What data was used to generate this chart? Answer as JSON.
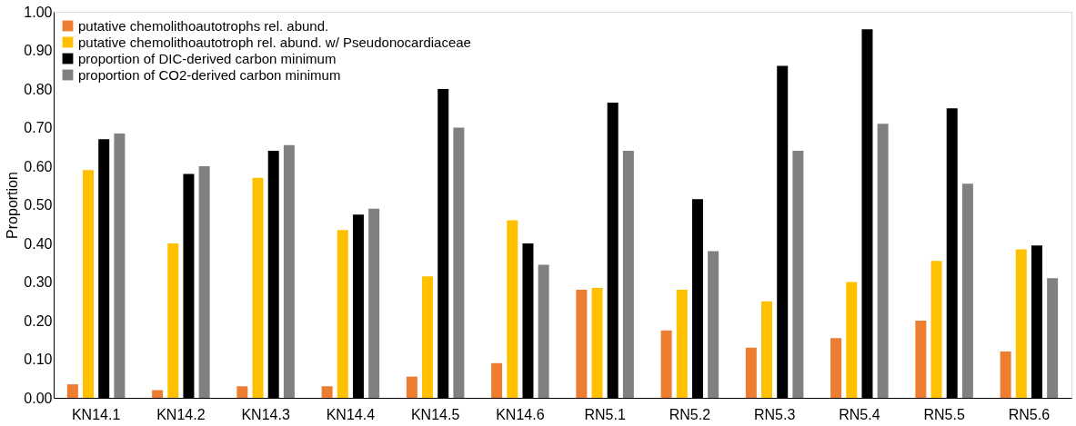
{
  "chart_data": {
    "type": "bar",
    "ylabel": "Proportion",
    "categories": [
      "KN14.1",
      "KN14.2",
      "KN14.3",
      "KN14.4",
      "KN14.5",
      "KN14.6",
      "RN5.1",
      "RN5.2",
      "RN5.3",
      "RN5.4",
      "RN5.5",
      "RN5.6"
    ],
    "series": [
      {
        "name": "putative chemolithoautotrophs rel. abund.",
        "color": "#ed7d31",
        "values": [
          0.035,
          0.02,
          0.03,
          0.03,
          0.055,
          0.09,
          0.28,
          0.175,
          0.13,
          0.155,
          0.2,
          0.12
        ]
      },
      {
        "name": "putative chemolithoautotroph rel. abund. w/ Pseudonocardiaceae",
        "color": "#ffc000",
        "values": [
          0.59,
          0.4,
          0.57,
          0.435,
          0.315,
          0.46,
          0.285,
          0.28,
          0.25,
          0.3,
          0.355,
          0.385
        ]
      },
      {
        "name": "proportion of DIC-derived carbon minimum",
        "color": "#000000",
        "values": [
          0.67,
          0.58,
          0.64,
          0.475,
          0.8,
          0.4,
          0.765,
          0.515,
          0.86,
          0.955,
          0.75,
          0.395
        ]
      },
      {
        "name": "proportion of CO2-derived carbon minimum",
        "color": "#808080",
        "values": [
          0.685,
          0.6,
          0.655,
          0.49,
          0.7,
          0.345,
          0.64,
          0.38,
          0.64,
          0.71,
          0.555,
          0.31
        ]
      }
    ],
    "ylim": [
      0,
      1
    ],
    "yticks": [
      {
        "value": 0,
        "label": "0.00"
      },
      {
        "value": 0.1,
        "label": "0.10"
      },
      {
        "value": 0.2,
        "label": "0.20"
      },
      {
        "value": 0.3,
        "label": "0.30"
      },
      {
        "value": 0.4,
        "label": "0.40"
      },
      {
        "value": 0.5,
        "label": "0.50"
      },
      {
        "value": 0.6,
        "label": "0.60"
      },
      {
        "value": 0.7,
        "label": "0.70"
      },
      {
        "value": 0.8,
        "label": "0.80"
      },
      {
        "value": 0.9,
        "label": "0.90"
      },
      {
        "value": 1.0,
        "label": "1.00"
      }
    ],
    "grid": false,
    "legend": "top left"
  }
}
